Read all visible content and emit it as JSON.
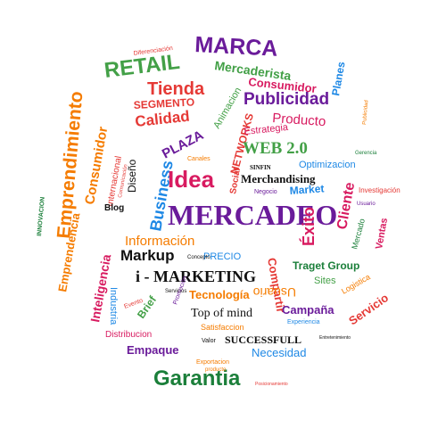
{
  "colors": {
    "purple": "#6a1b9a",
    "magenta": "#d81b60",
    "red": "#e53935",
    "orange": "#f57c00",
    "green": "#43a047",
    "darkgreen": "#1b7f3a",
    "blue": "#1e88e5",
    "teal": "#00897b",
    "black": "#111111"
  },
  "words": {
    "mercadeo": "MERCADEO",
    "marca": "MARCA",
    "retail": "RETAIL",
    "mercaderista": "Mercaderista",
    "consumidor": "Consumidor",
    "tienda": "Tienda",
    "segmento": "SEGMENTO",
    "publicidad": "Publicidad",
    "planes": "Planes",
    "producto": "Producto",
    "calidad": "Calidad",
    "estrategia": "Estrategia",
    "networks": "NETWORKS",
    "social": "Social",
    "web20": "WEB 2.0",
    "plaza": "PLAZA",
    "idea": "Idea",
    "business": "Business",
    "merchandising": "Merchandising",
    "optimizacion": "Optimizacion",
    "market": "Market",
    "investigacion": "Investigación",
    "cliente": "Cliente",
    "exito": "Éxito",
    "informacion": "Información",
    "markup": "Markup",
    "precio": "PRECIO",
    "imarketing": "i - MARKETING",
    "tecnologia": "Tecnología",
    "traget_group": "Traget Group",
    "sites": "Sites",
    "compartir": "Compartir",
    "usuario": "Usuario",
    "top_of_mind": "Top of mind",
    "campana": "Campaña",
    "servicio": "Servicio",
    "satisfaccion": "Satisfaccion",
    "successfull": "SUCCESSFULL",
    "empaque": "Empaque",
    "necesidad": "Necesidad",
    "garantia": "Garantia",
    "emprendimiento": "Emprendimiento",
    "consumidor_v": "Consumidor",
    "inteligencia": "Inteligencia",
    "emprendencia": "Emprendencia",
    "internacional": "Internacional",
    "industria": "Industria",
    "innovacion": "INNOVACION",
    "diseno": "Diseño",
    "blog": "Blog",
    "canales": "Canales",
    "animacion": "Animacion",
    "ventas": "Ventas",
    "mercado": "Mercado",
    "distribucion": "Distribucion",
    "brief": "Brief",
    "valor": "Valor",
    "negocio": "Negocio",
    "comunicacion": "Comunicación",
    "experiencia": "Experiencia",
    "servicios": "Servicios",
    "diferenciacion": "Diferenciación",
    "sinfin": "SINFIN",
    "publicidad_small": "Publicidad",
    "exportacion": "Exportacion",
    "posicionamiento": "Posicionamiento",
    "concepto": "Concepto",
    "gerencia": "Gerencia",
    "usuario_small": "Usuario",
    "entretenimiento": "Entretenimiento",
    "promocion": "Promoción",
    "logistica": "Logistica",
    "producto_small": "producto",
    "evento": "Evento"
  }
}
